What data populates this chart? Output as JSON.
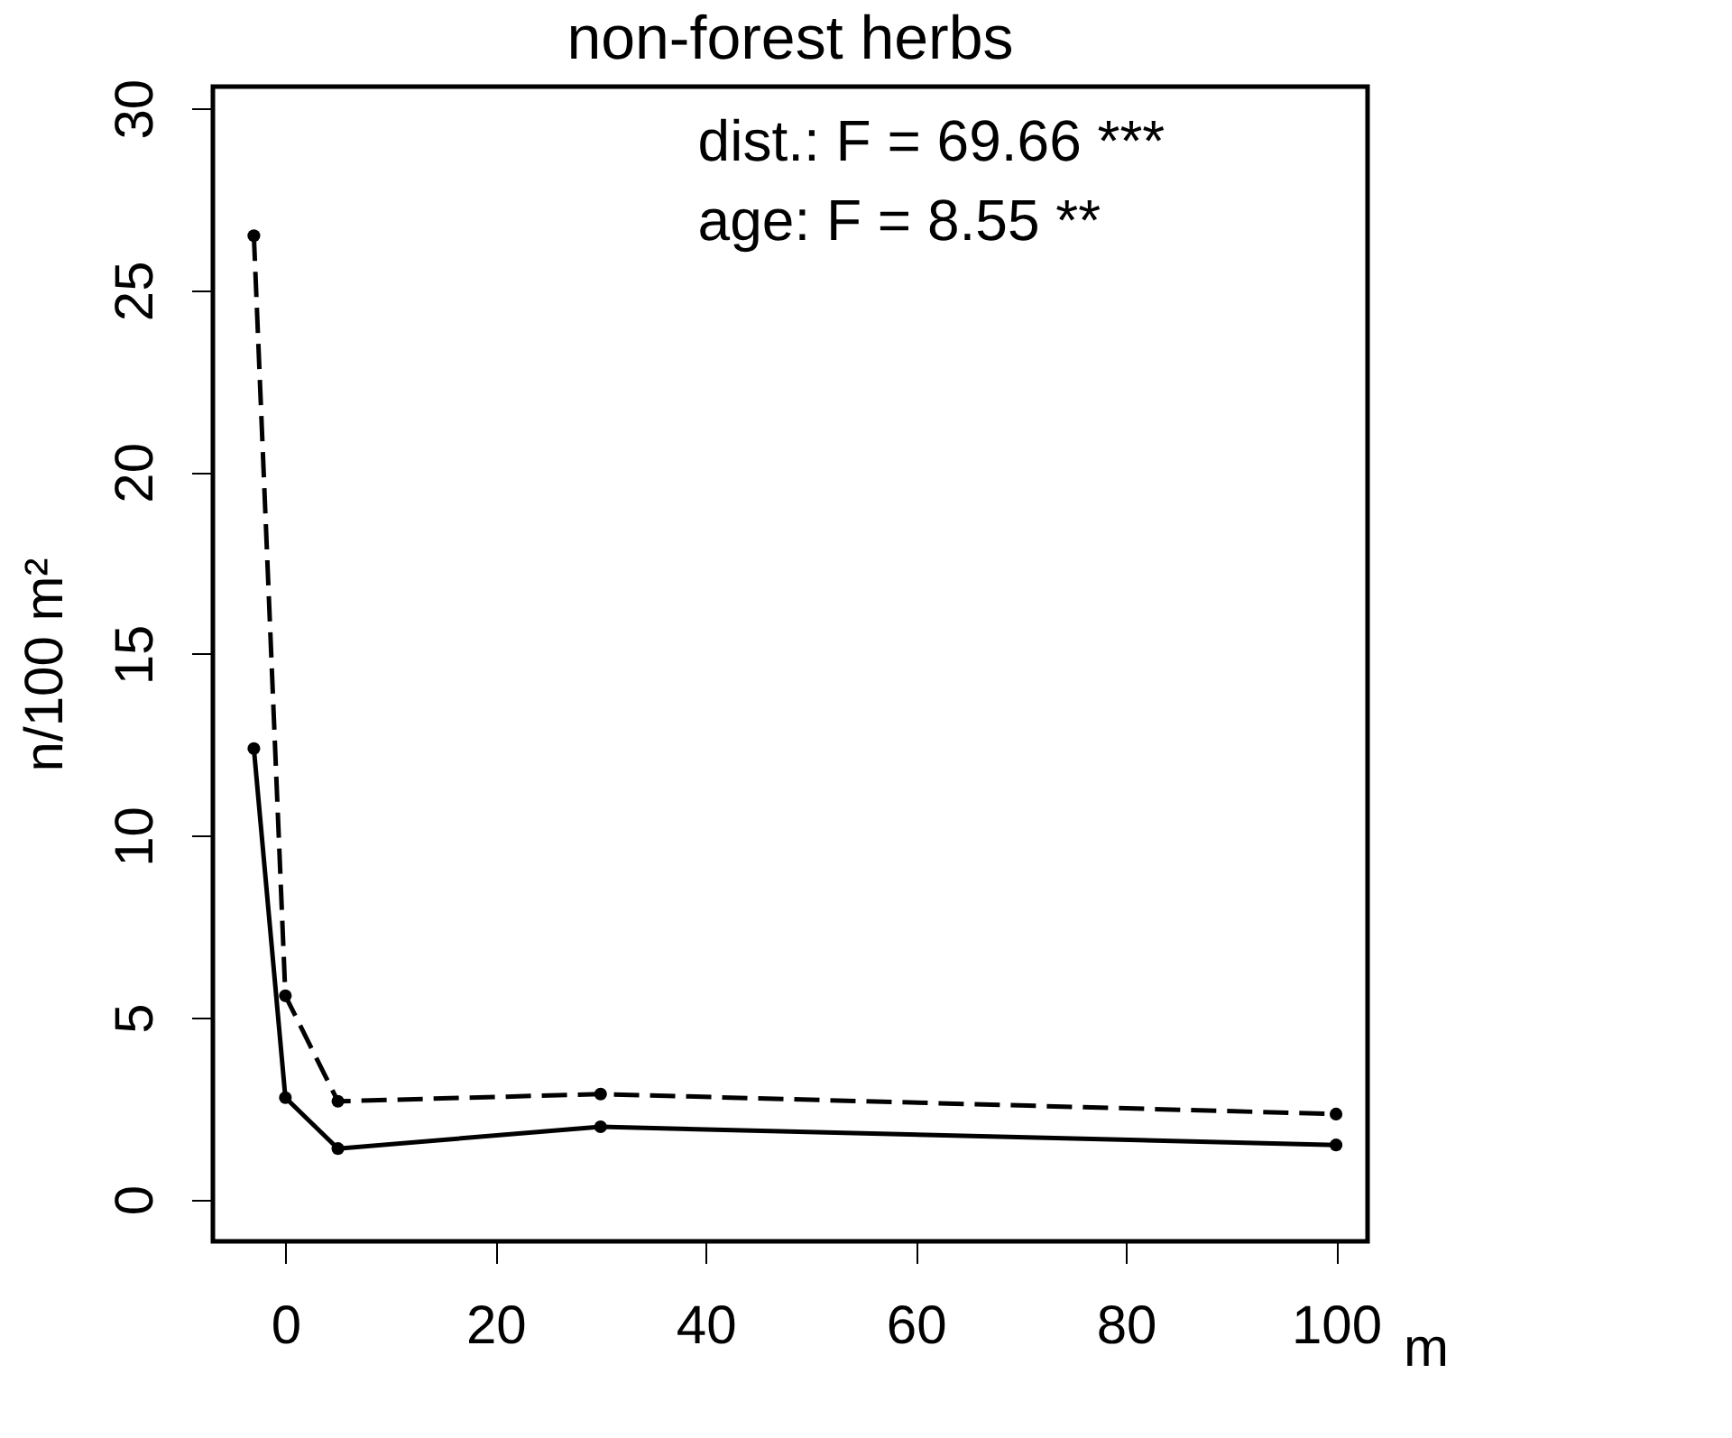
{
  "chart_data": {
    "type": "line",
    "title": "non-forest herbs",
    "xlabel": "m",
    "ylabel": "n/100 m²",
    "x": [
      -3,
      0,
      5,
      30,
      100
    ],
    "series": [
      {
        "color": "#000000",
        "line_style": "dashed",
        "values": [
          26.5,
          5.6,
          2.7,
          2.9,
          2.35
        ]
      },
      {
        "color": "#000000",
        "line_style": "solid",
        "values": [
          12.4,
          2.8,
          1.4,
          2.0,
          1.5
        ]
      }
    ],
    "xlim": [
      -6.9,
      103
    ],
    "ylim": [
      -1.15,
      30.6
    ],
    "xticks": [
      0,
      20,
      40,
      60,
      80,
      100
    ],
    "yticks": [
      0,
      5,
      10,
      15,
      20,
      25,
      30
    ],
    "annotations": [
      "dist.: F = 69.66 ***",
      "age: F = 8.55 **"
    ],
    "marker": "circle",
    "grid": false
  }
}
